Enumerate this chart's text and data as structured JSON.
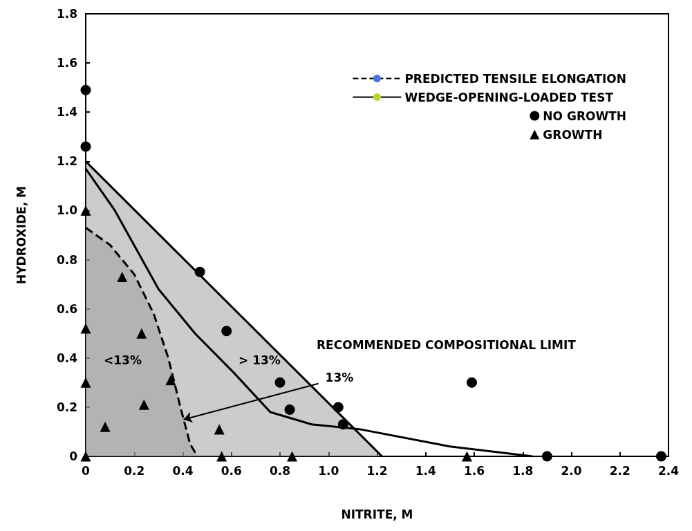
{
  "chart_data": {
    "type": "scatter",
    "xlabel": "NITRITE, M",
    "ylabel": "HYDROXIDE, M",
    "xlim": [
      0,
      2.4
    ],
    "ylim": [
      0,
      1.8
    ],
    "xticks": [
      0,
      0.2,
      0.4,
      0.6,
      0.8,
      {
        "value": 1,
        "label": "1.0"
      },
      1.2,
      1.4,
      1.6,
      1.8,
      {
        "value": 2,
        "label": "2.0"
      },
      2.2,
      2.4
    ],
    "yticks": [
      0,
      0.2,
      0.4,
      0.6,
      0.8,
      {
        "value": 1,
        "label": "1.0"
      },
      1.2,
      1.4,
      1.6,
      1.8
    ],
    "grid": false,
    "legend": "top right",
    "series": [
      {
        "name": "PREDICTED TENSILE ELONGATION",
        "type": "area",
        "line_style": "dashed",
        "color": "#000000",
        "x": [
          0,
          0.1,
          0.2,
          0.28,
          0.34,
          0.39,
          0.43,
          0.46
        ],
        "values": [
          0.93,
          0.86,
          0.74,
          0.58,
          0.4,
          0.2,
          0.05,
          0
        ]
      },
      {
        "name": "WEDGE-OPENING-LOADED TEST",
        "type": "line",
        "line_style": "solid",
        "color": "#000000",
        "x": [
          0,
          0.12,
          0.3,
          0.45,
          0.61,
          0.76,
          0.93,
          1.13,
          1.5,
          1.84
        ],
        "values": [
          1.17,
          1.0,
          0.68,
          0.5,
          0.34,
          0.18,
          0.13,
          0.11,
          0.04,
          0
        ]
      },
      {
        "name": "NO GROWTH",
        "marker": "circle",
        "color": "#000000",
        "x": [
          0,
          0,
          0.47,
          0.58,
          0.8,
          0.84,
          1.04,
          1.06,
          1.59,
          1.9,
          2.37
        ],
        "values": [
          1.49,
          1.26,
          0.75,
          0.51,
          0.3,
          0.19,
          0.2,
          0.13,
          0.3,
          0,
          0
        ]
      },
      {
        "name": "GROWTH",
        "marker": "triangle",
        "color": "#000000",
        "x": [
          0,
          0,
          0,
          0,
          0.08,
          0.15,
          0.23,
          0.24,
          0.35,
          0.55,
          0.56,
          0.85,
          1.57
        ],
        "values": [
          1.0,
          0.52,
          0.3,
          0,
          0.12,
          0.73,
          0.5,
          0.21,
          0.31,
          0.11,
          0,
          0,
          0
        ]
      },
      {
        "type": "area",
        "line_style": "solid",
        "color": "#000000",
        "x": [
          0,
          1.22
        ],
        "values": [
          1.2,
          0
        ]
      }
    ],
    "annotations": [
      "<13%",
      "> 13%",
      {
        "text": "13%",
        "x": 0.403,
        "y": 0.15
      },
      "RECOMMENDED COMPOSITIONAL LIMIT"
    ]
  }
}
